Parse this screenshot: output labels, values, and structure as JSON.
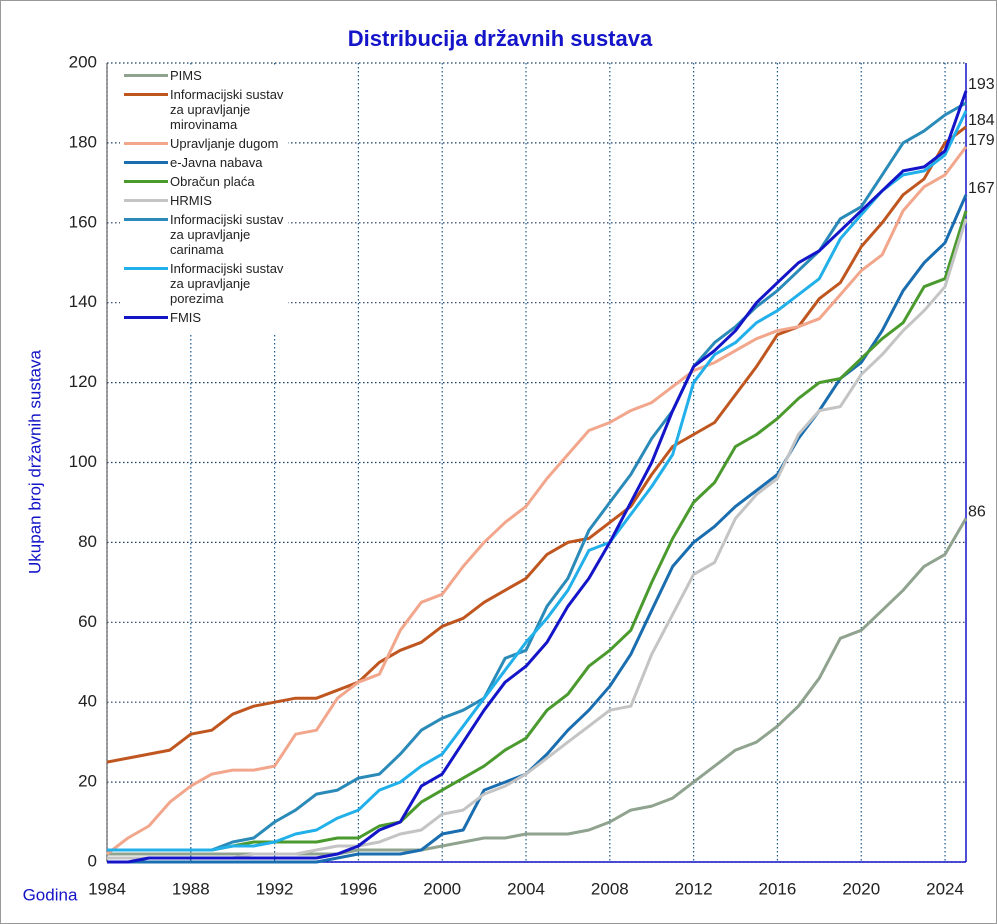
{
  "chart_data": {
    "type": "line",
    "title": "Distribucija državnih sustava",
    "xlabel": "Godina",
    "ylabel": "Ukupan broj državnih sustava",
    "x": [
      1984,
      1985,
      1986,
      1987,
      1988,
      1989,
      1990,
      1991,
      1992,
      1993,
      1994,
      1995,
      1996,
      1997,
      1998,
      1999,
      2000,
      2001,
      2002,
      2003,
      2004,
      2005,
      2006,
      2007,
      2008,
      2009,
      2010,
      2011,
      2012,
      2013,
      2014,
      2015,
      2016,
      2017,
      2018,
      2019,
      2020,
      2021,
      2022,
      2023,
      2024,
      2025
    ],
    "xlim": [
      1984,
      2025
    ],
    "xticks": [
      1984,
      1988,
      1992,
      1996,
      2000,
      2004,
      2008,
      2012,
      2016,
      2020,
      2024
    ],
    "ylim": [
      0,
      200
    ],
    "yticks": [
      0,
      20,
      40,
      60,
      80,
      100,
      120,
      140,
      160,
      180,
      200
    ],
    "grid": true,
    "legend": "upper left",
    "end_labels": [
      193,
      184,
      179,
      167,
      86
    ],
    "series": [
      {
        "name": "PIMS",
        "color": "#8fa38f",
        "values": [
          2,
          2,
          2,
          2,
          2,
          2,
          2,
          2,
          2,
          2,
          2,
          2,
          3,
          3,
          3,
          3,
          4,
          5,
          6,
          6,
          7,
          7,
          7,
          8,
          10,
          13,
          14,
          16,
          20,
          24,
          28,
          30,
          34,
          39,
          46,
          56,
          58,
          63,
          68,
          74,
          77,
          86
        ]
      },
      {
        "name": "Informacijski sustav za upravljanje mirovinama",
        "color": "#c0561f",
        "values": [
          25,
          26,
          27,
          28,
          32,
          33,
          37,
          39,
          40,
          41,
          41,
          43,
          45,
          50,
          53,
          55,
          59,
          61,
          65,
          68,
          71,
          77,
          80,
          81,
          85,
          89,
          97,
          104,
          107,
          110,
          117,
          124,
          132,
          134,
          141,
          145,
          154,
          160,
          167,
          171,
          180,
          184
        ]
      },
      {
        "name": "Upravljanje dugom",
        "color": "#f2a68c",
        "values": [
          2,
          6,
          9,
          15,
          19,
          22,
          23,
          23,
          24,
          32,
          33,
          41,
          45,
          47,
          58,
          65,
          67,
          74,
          80,
          85,
          89,
          96,
          102,
          108,
          110,
          113,
          115,
          119,
          123,
          125,
          128,
          131,
          133,
          134,
          136,
          142,
          148,
          152,
          163,
          169,
          172,
          179
        ]
      },
      {
        "name": "e-Javna nabava",
        "color": "#1a6eb0",
        "values": [
          0,
          0,
          0,
          0,
          0,
          0,
          0,
          0,
          0,
          0,
          0,
          1,
          2,
          2,
          2,
          3,
          7,
          8,
          18,
          20,
          22,
          27,
          33,
          38,
          44,
          52,
          63,
          74,
          80,
          84,
          89,
          93,
          97,
          106,
          113,
          121,
          125,
          133,
          143,
          150,
          155,
          167
        ]
      },
      {
        "name": "Obračun plaća",
        "color": "#4a9a2e",
        "values": [
          3,
          3,
          3,
          3,
          3,
          3,
          4,
          5,
          5,
          5,
          5,
          6,
          6,
          9,
          10,
          15,
          18,
          21,
          24,
          28,
          31,
          38,
          42,
          49,
          53,
          58,
          70,
          81,
          90,
          95,
          104,
          107,
          111,
          116,
          120,
          121,
          126,
          131,
          135,
          144,
          146,
          163
        ]
      },
      {
        "name": "HRMIS",
        "color": "#c4c4c4",
        "values": [
          1,
          1,
          1,
          1,
          1,
          1,
          1,
          2,
          2,
          2,
          3,
          4,
          4,
          5,
          7,
          8,
          12,
          13,
          17,
          19,
          22,
          26,
          30,
          34,
          38,
          39,
          52,
          62,
          72,
          75,
          86,
          92,
          96,
          107,
          113,
          114,
          122,
          127,
          133,
          138,
          144,
          161
        ]
      },
      {
        "name": "Informacijski sustav za upravljanje carinama",
        "color": "#2a8ab8",
        "values": [
          3,
          3,
          3,
          3,
          3,
          3,
          5,
          6,
          10,
          13,
          17,
          18,
          21,
          22,
          27,
          33,
          36,
          38,
          41,
          51,
          53,
          64,
          71,
          83,
          90,
          97,
          106,
          113,
          124,
          130,
          134,
          139,
          143,
          148,
          153,
          161,
          164,
          172,
          180,
          183,
          187,
          190
        ]
      },
      {
        "name": "Informacijski sustav za upravljanje porezima",
        "color": "#22b0ea",
        "values": [
          3,
          3,
          3,
          3,
          3,
          3,
          4,
          4,
          5,
          7,
          8,
          11,
          13,
          18,
          20,
          24,
          27,
          34,
          41,
          48,
          55,
          61,
          68,
          78,
          80,
          87,
          94,
          102,
          120,
          127,
          130,
          135,
          138,
          142,
          146,
          156,
          162,
          168,
          172,
          173,
          177,
          188
        ]
      },
      {
        "name": "FMIS",
        "color": "#1414c8",
        "values": [
          0,
          0,
          1,
          1,
          1,
          1,
          1,
          1,
          1,
          1,
          1,
          2,
          4,
          8,
          10,
          19,
          22,
          30,
          38,
          45,
          49,
          55,
          64,
          71,
          80,
          90,
          100,
          113,
          124,
          128,
          133,
          140,
          145,
          150,
          153,
          158,
          163,
          168,
          173,
          174,
          178,
          193
        ]
      }
    ]
  }
}
